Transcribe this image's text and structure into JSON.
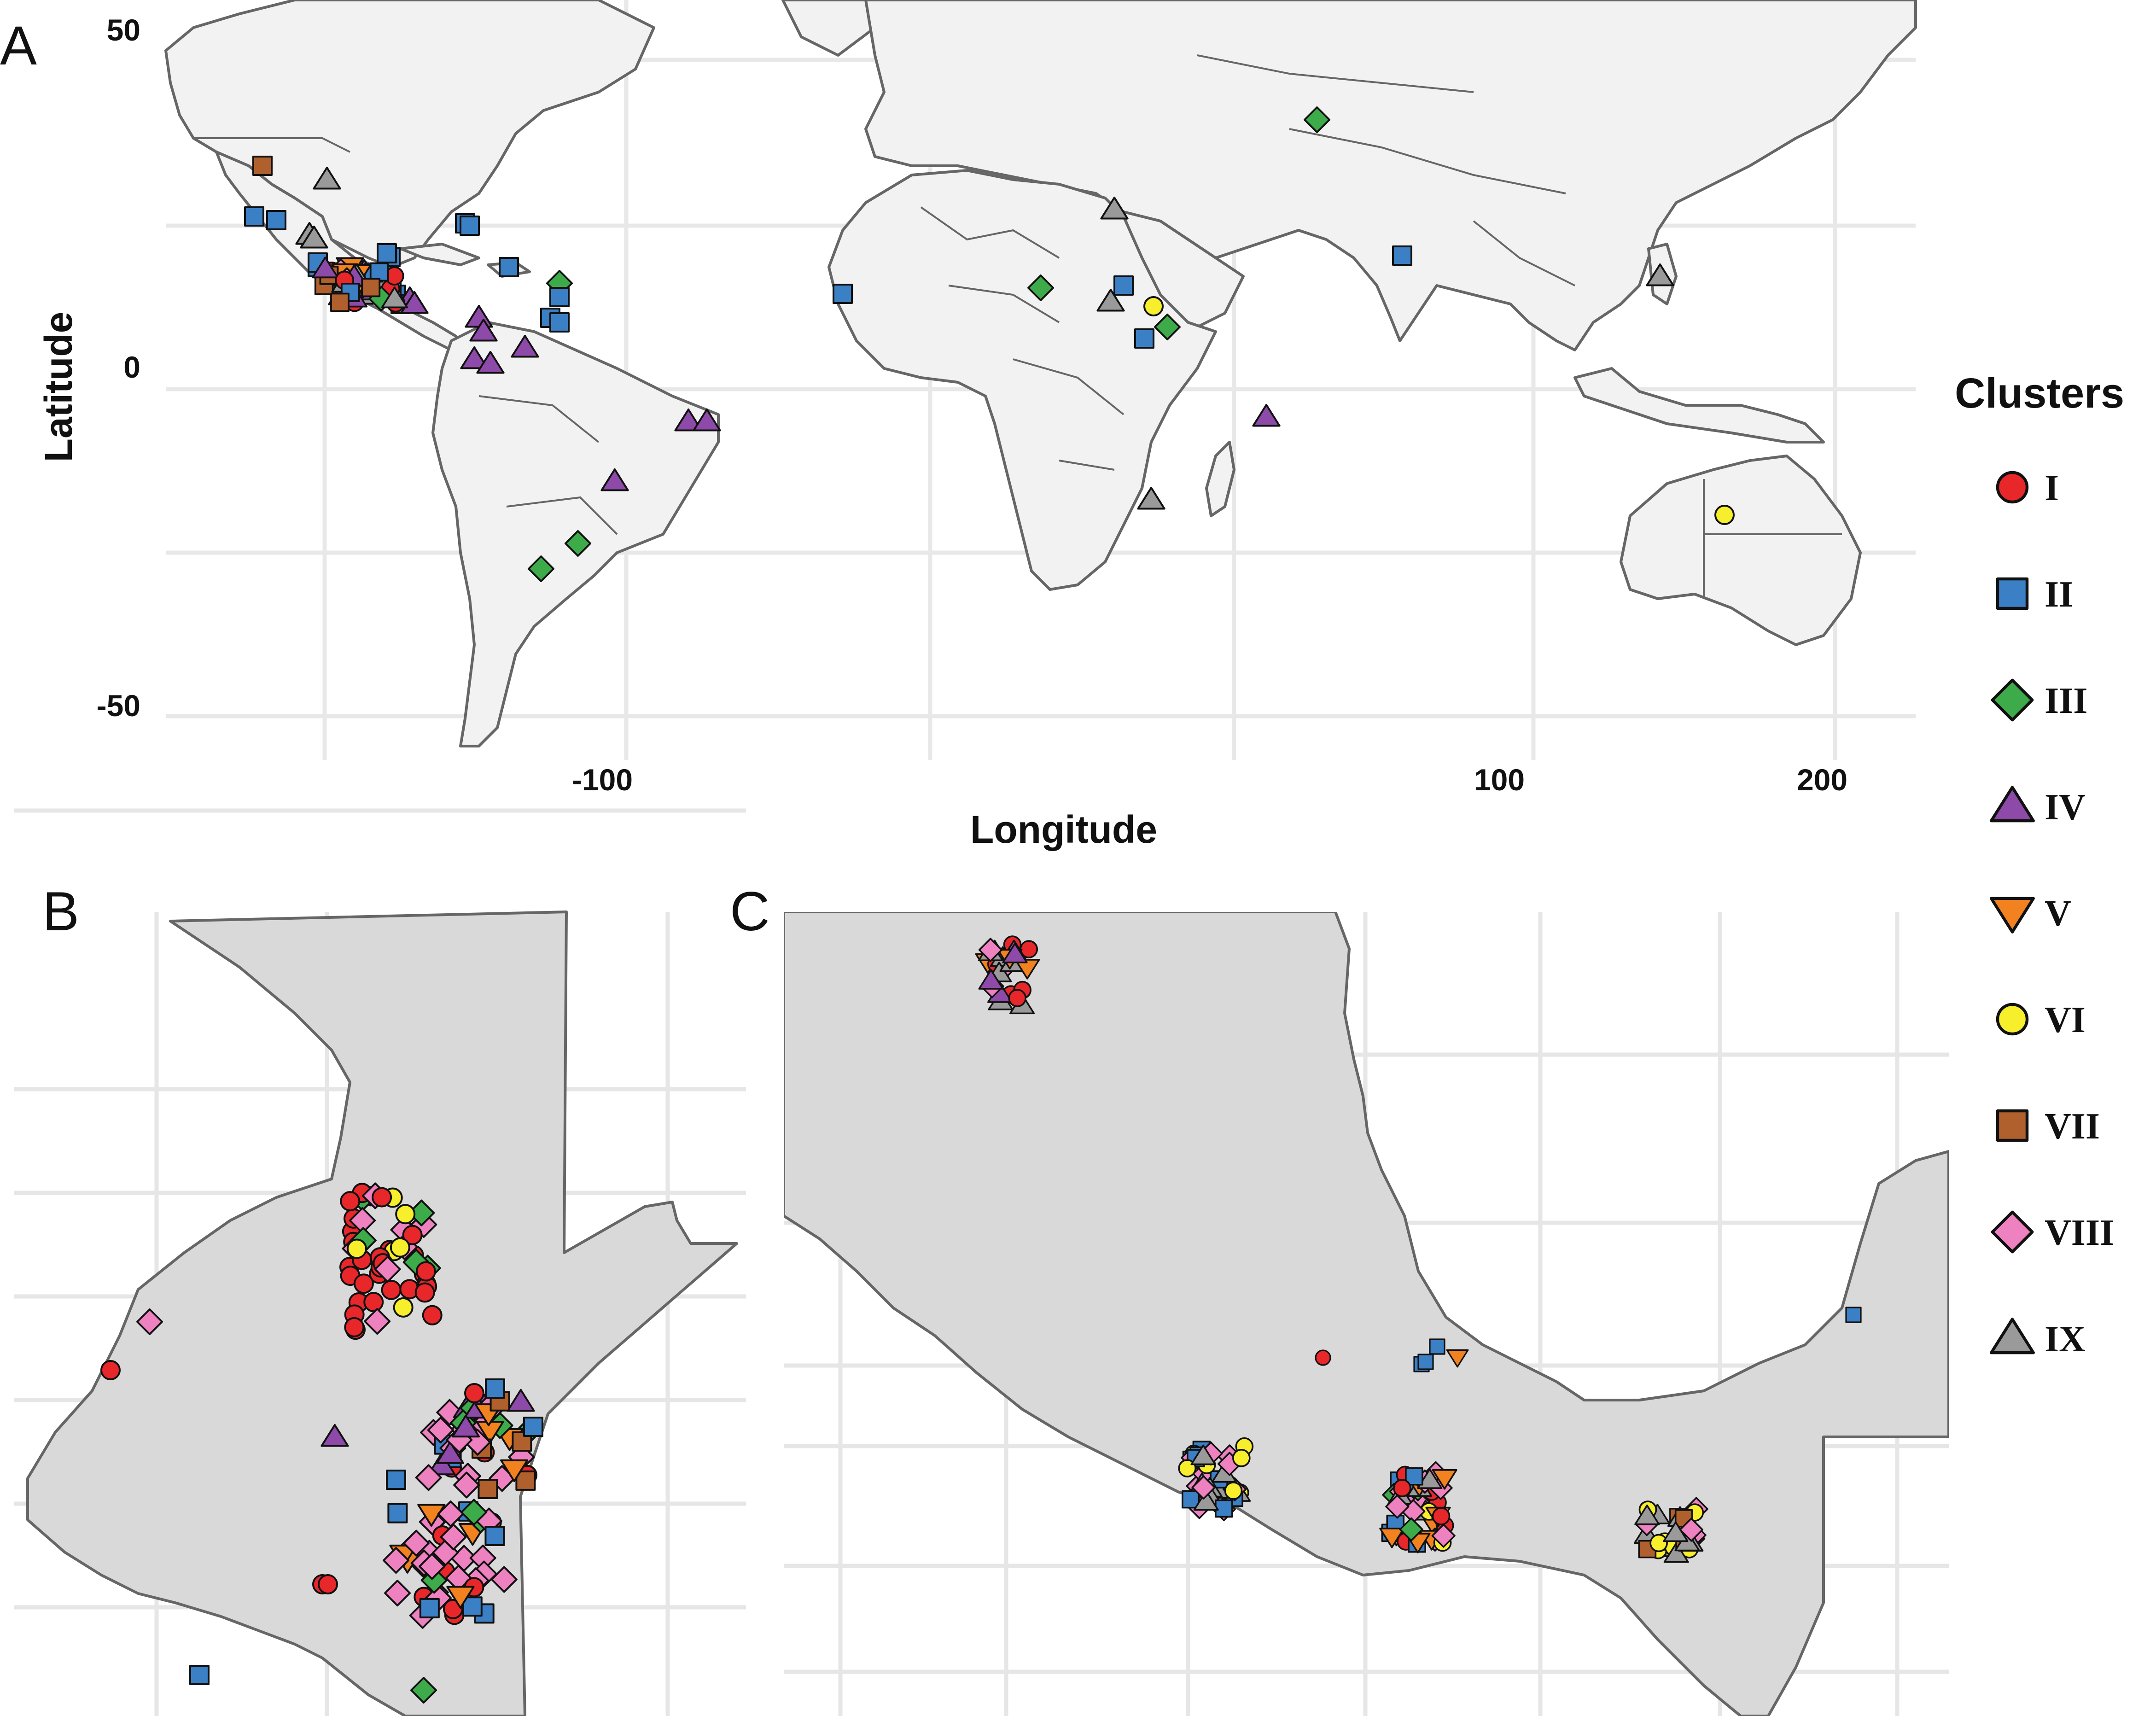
{
  "panels": [
    {
      "id": "A",
      "label": "A"
    },
    {
      "id": "B",
      "label": "B"
    },
    {
      "id": "C",
      "label": "C"
    }
  ],
  "axes": {
    "x_title": "Longitude",
    "y_title": "Latitude",
    "x_ticks": [
      "-100",
      "100",
      "200"
    ],
    "y_ticks": [
      "50",
      "0",
      "-50"
    ]
  },
  "legend": {
    "title": "Clusters",
    "items": [
      {
        "label": "I",
        "shape": "circle",
        "color": "#e8272a"
      },
      {
        "label": "II",
        "shape": "square",
        "color": "#3b7fc4"
      },
      {
        "label": "III",
        "shape": "diamond",
        "color": "#3dab49"
      },
      {
        "label": "IV",
        "shape": "triangle-up",
        "color": "#8e4aa8"
      },
      {
        "label": "V",
        "shape": "triangle-down",
        "color": "#f2821f"
      },
      {
        "label": "VI",
        "shape": "circle",
        "color": "#f7ee2c"
      },
      {
        "label": "VII",
        "shape": "square",
        "color": "#b0602c"
      },
      {
        "label": "VIII",
        "shape": "diamond",
        "color": "#ee82c0"
      },
      {
        "label": "IX",
        "shape": "triangle-up",
        "color": "#9a9a9a"
      }
    ]
  },
  "colors": {
    "land_world": "#f2f2f2",
    "land_detail": "#d9d9d9",
    "border": "#666666",
    "grid": "#e6e6e6",
    "outline": "#111111"
  }
}
